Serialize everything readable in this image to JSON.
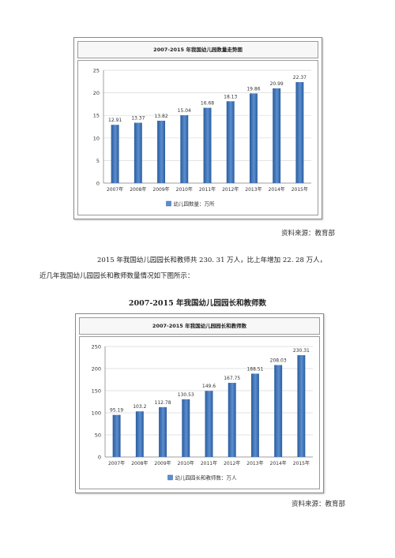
{
  "chart1": {
    "title": "2007-2015 年我国幼儿园数量走势图",
    "legend": "幼儿园数量：万所"
  },
  "source1": "资料来源：教育部",
  "paragraph": {
    "line1": "2015 年我国幼儿园园长和教师共 230. 31 万人，比上年增加 22. 28 万人，",
    "line2": "近几年我国幼儿园园长和教师数量情况如下图所示："
  },
  "chart2": {
    "heading": "2007-2015 年我国幼儿园园长和教师数",
    "title": "2007-2015 年我国幼儿园园长和教师数",
    "legend": "幼儿园园长和教师数：万人"
  },
  "source2": "资料来源：教育部",
  "colors": {
    "bar_dark": "#2a5c9c",
    "bar_light": "#5b8ed0",
    "grid": "#d9d9d9"
  },
  "chart_data": [
    {
      "type": "bar",
      "title": "2007-2015 年我国幼儿园数量走势图",
      "categories": [
        "2007年",
        "2008年",
        "2009年",
        "2010年",
        "2011年",
        "2012年",
        "2013年",
        "2014年",
        "2015年"
      ],
      "values": [
        12.91,
        13.37,
        13.82,
        15.04,
        16.68,
        18.13,
        19.86,
        20.99,
        22.37
      ],
      "value_labels": [
        "12.91",
        "13.37",
        "13.82",
        "15.04",
        "16.68",
        "18.13",
        "19.86",
        "20.99",
        "22.37"
      ],
      "series": [
        {
          "name": "幼儿园数量：万所",
          "values": [
            12.91,
            13.37,
            13.82,
            15.04,
            16.68,
            18.13,
            19.86,
            20.99,
            22.37
          ]
        }
      ],
      "yticks": [
        "0",
        "5",
        "10",
        "15",
        "20",
        "25"
      ],
      "ylim": [
        0,
        25
      ],
      "grid": true,
      "legend_position": "bottom"
    },
    {
      "type": "bar",
      "title": "2007-2015 年我国幼儿园园长和教师数",
      "categories": [
        "2007年",
        "2008年",
        "2009年",
        "2010年",
        "2011年",
        "2012年",
        "2013年",
        "2014年",
        "2015年"
      ],
      "values": [
        95.19,
        103.2,
        112.78,
        130.53,
        149.6,
        167.75,
        188.51,
        208.03,
        230.31
      ],
      "value_labels": [
        "95.19",
        "103.2",
        "112.78",
        "130.53",
        "149.6",
        "167.75",
        "188.51",
        "208.03",
        "230.31"
      ],
      "series": [
        {
          "name": "幼儿园园长和教师数：万人",
          "values": [
            95.19,
            103.2,
            112.78,
            130.53,
            149.6,
            167.75,
            188.51,
            208.03,
            230.31
          ]
        }
      ],
      "yticks": [
        "0",
        "50",
        "100",
        "150",
        "200",
        "250"
      ],
      "ylim": [
        0,
        250
      ],
      "grid": true,
      "legend_position": "bottom"
    }
  ]
}
